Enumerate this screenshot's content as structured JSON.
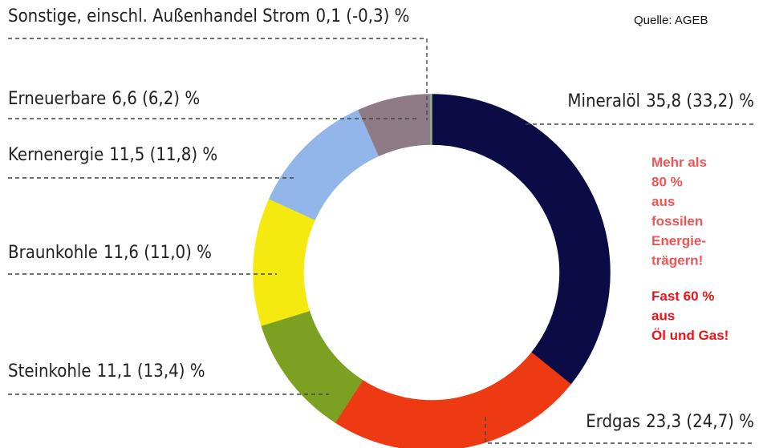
{
  "chart_data": {
    "type": "donut",
    "source": "Quelle: AGEB",
    "categories": [
      "Mineralöl",
      "Erdgas",
      "Steinkohle",
      "Braunkohle",
      "Kernenergie",
      "Erneuerbare",
      "Sonstige, einschl. Außenhandel Strom"
    ],
    "values": [
      35.8,
      23.3,
      11.1,
      11.6,
      11.5,
      6.6,
      0.1
    ],
    "value_labels": [
      "35,8 (33,2) %",
      "23,3 (24,7) %",
      "11,1 (13,4) %",
      "11,6 (11,0) %",
      "11,5 (11,8) %",
      "6,6 (6,2) %",
      "0,1 (-0,3) %"
    ],
    "colors": [
      "#0b0b45",
      "#ee3a12",
      "#7ca021",
      "#f5ea10",
      "#93b6ea",
      "#8e7b85",
      "#8fb08a"
    ],
    "annotations": [
      {
        "lines": [
          "Mehr als",
          "80 %",
          "aus",
          "fossilen",
          "Energie-",
          "trägern!"
        ],
        "color": "#ee5555"
      },
      {
        "lines": [
          "Fast 60 %",
          "aus",
          "Öl und Gas!"
        ],
        "color": "#e8141a"
      }
    ]
  }
}
